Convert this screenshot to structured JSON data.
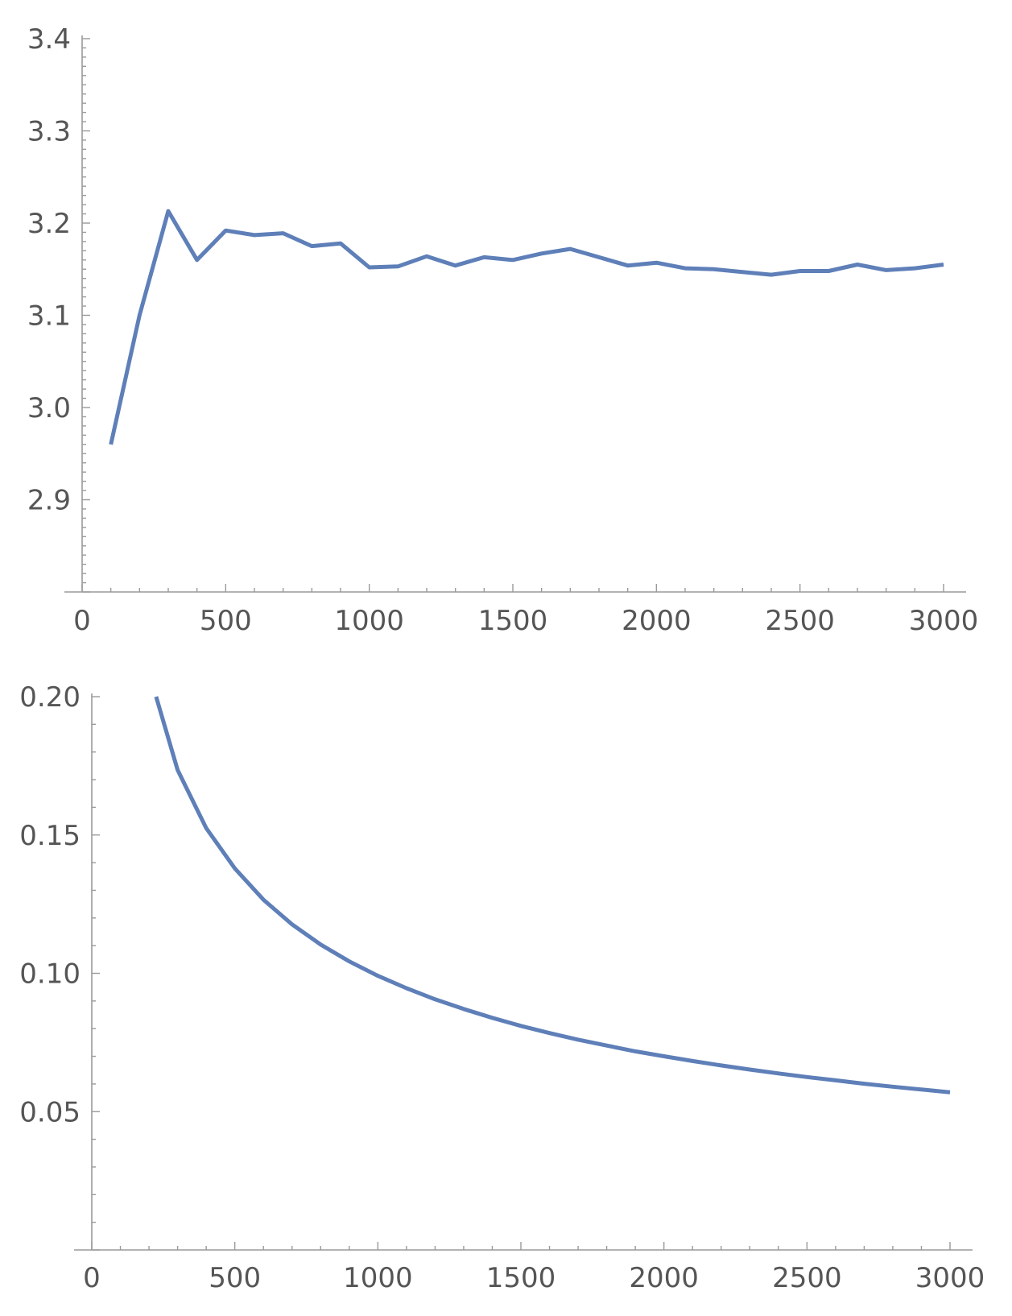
{
  "chart_data": [
    {
      "type": "line",
      "title": "",
      "xlabel": "",
      "ylabel": "",
      "xlim": [
        0,
        3000
      ],
      "ylim": [
        2.8,
        3.4
      ],
      "x_ticks": [
        0,
        500,
        1000,
        1500,
        2000,
        2500,
        3000
      ],
      "x_tick_labels": [
        "0",
        "500",
        "1000",
        "1500",
        "2000",
        "2500",
        "3000"
      ],
      "y_ticks": [
        2.9,
        3.0,
        3.1,
        3.2,
        3.3,
        3.4
      ],
      "y_tick_labels": [
        "2.9",
        "3.0",
        "3.1",
        "3.2",
        "3.3",
        "3.4"
      ],
      "grid": false,
      "color": "#5e7fb8",
      "series": [
        {
          "x": [
            100,
            200,
            300,
            400,
            500,
            600,
            700,
            800,
            900,
            1000,
            1100,
            1200,
            1300,
            1400,
            1500,
            1600,
            1700,
            1800,
            1900,
            2000,
            2100,
            2200,
            2300,
            2400,
            2500,
            2600,
            2700,
            2800,
            2900,
            3000
          ],
          "y": [
            2.96,
            3.1,
            3.213,
            3.16,
            3.192,
            3.187,
            3.189,
            3.175,
            3.178,
            3.152,
            3.153,
            3.164,
            3.154,
            3.163,
            3.16,
            3.167,
            3.172,
            3.163,
            3.154,
            3.157,
            3.151,
            3.15,
            3.147,
            3.144,
            3.148,
            3.148,
            3.155,
            3.149,
            3.151,
            3.155
          ]
        }
      ]
    },
    {
      "type": "line",
      "title": "",
      "xlabel": "",
      "ylabel": "",
      "xlim": [
        0,
        3000
      ],
      "ylim": [
        0,
        0.2
      ],
      "x_ticks": [
        0,
        500,
        1000,
        1500,
        2000,
        2500,
        3000
      ],
      "x_tick_labels": [
        "0",
        "500",
        "1000",
        "1500",
        "2000",
        "2500",
        "3000"
      ],
      "y_ticks": [
        0.05,
        0.1,
        0.15,
        0.2
      ],
      "y_tick_labels": [
        "0.05",
        "0.10",
        "0.15",
        "0.20"
      ],
      "grid": false,
      "color": "#5e7fb8",
      "series": [
        {
          "x": [
            225,
            300,
            400,
            500,
            600,
            700,
            800,
            900,
            1000,
            1100,
            1200,
            1300,
            1400,
            1500,
            1600,
            1700,
            1800,
            1900,
            2000,
            2100,
            2200,
            2300,
            2400,
            2500,
            2600,
            2700,
            2800,
            2900,
            3000
          ],
          "y": [
            0.2,
            0.1735,
            0.1525,
            0.1379,
            0.1266,
            0.1177,
            0.1104,
            0.1043,
            0.0991,
            0.0946,
            0.0906,
            0.0871,
            0.0839,
            0.081,
            0.0784,
            0.076,
            0.0739,
            0.0718,
            0.07,
            0.0683,
            0.0667,
            0.0652,
            0.0638,
            0.0625,
            0.0613,
            0.0601,
            0.059,
            0.058,
            0.057
          ]
        }
      ]
    }
  ]
}
